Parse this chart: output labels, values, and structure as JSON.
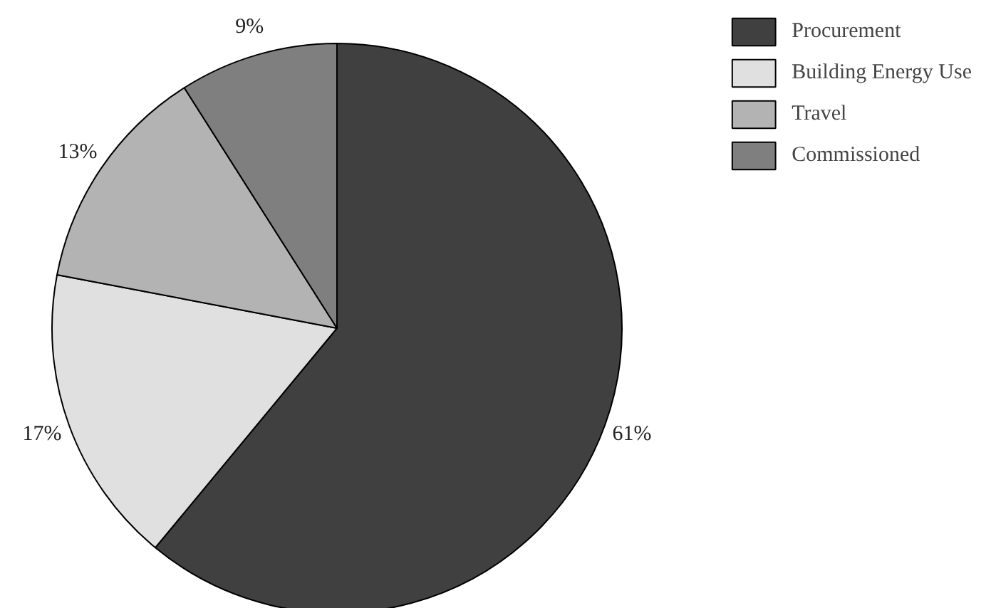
{
  "chart_data": {
    "type": "pie",
    "categories": [
      "Procurement",
      "Building Energy Use",
      "Travel",
      "Commissioned"
    ],
    "values": [
      61,
      17,
      13,
      9
    ],
    "colors": [
      "#404040",
      "#e0e0e0",
      "#b3b3b3",
      "#7f7f7f"
    ],
    "value_labels": [
      "61%",
      "17%",
      "13%",
      "9%"
    ],
    "legend": "top right"
  }
}
